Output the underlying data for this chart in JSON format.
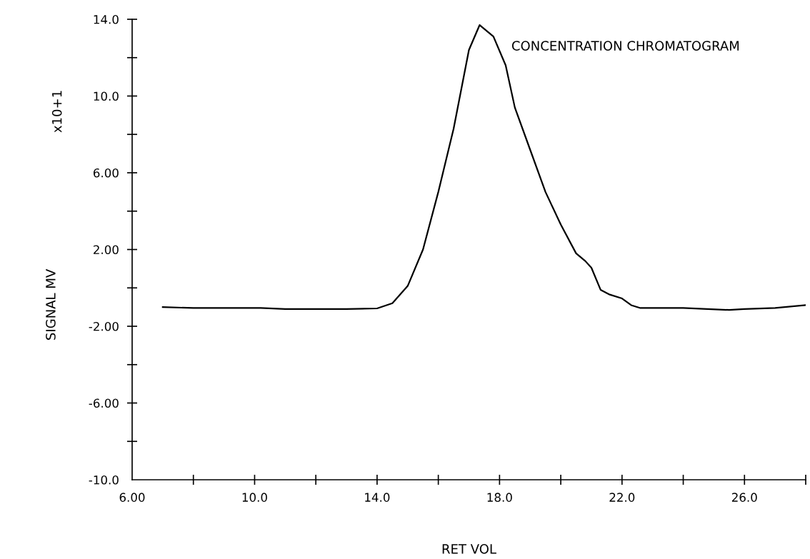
{
  "chart_data": {
    "type": "line",
    "xlabel": "RET VOL",
    "ylabel": "SIGNAL MV",
    "annotations": [
      "CONCENTRATION CHROMATOGRAM",
      "x10+1"
    ],
    "x": [
      7.0,
      8.0,
      9.0,
      10.2,
      11.0,
      12.0,
      13.0,
      14.0,
      14.5,
      15.0,
      15.5,
      16.0,
      16.5,
      17.0,
      17.35,
      17.8,
      18.2,
      18.5,
      19.0,
      19.5,
      20.0,
      20.5,
      20.8,
      21.0,
      21.3,
      21.6,
      22.0,
      22.3,
      22.6,
      24.0,
      25.5,
      26.0,
      27.0,
      28.0
    ],
    "series": [
      {
        "color": "#000000",
        "values": [
          -1.0,
          -1.05,
          -1.05,
          -1.05,
          -1.1,
          -1.1,
          -1.1,
          -1.07,
          -0.8,
          0.1,
          2.0,
          5.0,
          8.3,
          12.4,
          13.7,
          13.1,
          11.6,
          9.4,
          7.2,
          5.0,
          3.3,
          1.8,
          1.4,
          1.05,
          -0.1,
          -0.35,
          -0.55,
          -0.9,
          -1.05,
          -1.05,
          -1.15,
          -1.1,
          -1.05,
          -0.9
        ]
      }
    ],
    "xlim": [
      6,
      28
    ],
    "ylim": [
      -10,
      14
    ],
    "xticks": [
      {
        "value": 6,
        "label": "6.00"
      },
      {
        "value": 8,
        "label": null
      },
      {
        "value": 10,
        "label": "10.0"
      },
      {
        "value": 12,
        "label": null
      },
      {
        "value": 14,
        "label": "14.0"
      },
      {
        "value": 16,
        "label": null
      },
      {
        "value": 18,
        "label": "18.0"
      },
      {
        "value": 20,
        "label": null
      },
      {
        "value": 22,
        "label": "22.0"
      },
      {
        "value": 24,
        "label": null
      },
      {
        "value": 26,
        "label": "26.0"
      },
      {
        "value": 28,
        "label": null
      }
    ],
    "yticks": [
      {
        "value": -10,
        "label": "-10.0"
      },
      {
        "value": -8,
        "label": null
      },
      {
        "value": -6,
        "label": "-6.00"
      },
      {
        "value": -4,
        "label": null
      },
      {
        "value": -2,
        "label": "-2.00"
      },
      {
        "value": 0,
        "label": null
      },
      {
        "value": 2,
        "label": "2.00"
      },
      {
        "value": 4,
        "label": null
      },
      {
        "value": 6,
        "label": "6.00"
      },
      {
        "value": 8,
        "label": null
      },
      {
        "value": 10,
        "label": "10.0"
      },
      {
        "value": 12,
        "label": null
      },
      {
        "value": 14,
        "label": "14.0"
      }
    ],
    "grid": false,
    "legend": false,
    "marker": "none",
    "line_style": "solid"
  }
}
